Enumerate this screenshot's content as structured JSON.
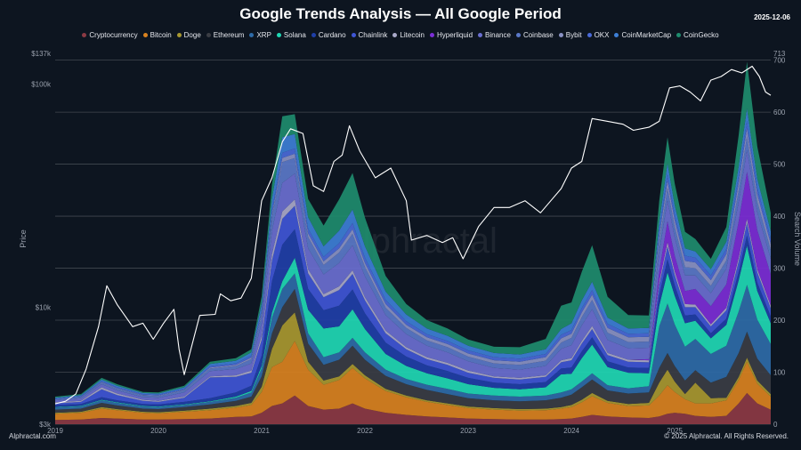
{
  "title": "Google Trends Analysis — All Google Period",
  "date": "2025-12-06",
  "brand": "Alphractal.com",
  "copyright": "© 2025 Alphractal. All Rights Reserved.",
  "watermark": "Alphractal",
  "chart_data": {
    "type": "area",
    "subtype": "stacked-area-with-price-line",
    "xlabel": "",
    "ylabel_left": "Price",
    "ylabel_right": "Search Volume",
    "y_left_scale": "log",
    "y_left_range": [
      3000,
      137000
    ],
    "y_left_ticks": [
      {
        "label": "$137k",
        "value": 137000
      },
      {
        "label": "$100k",
        "value": 100000
      },
      {
        "label": "$10k",
        "value": 10000
      },
      {
        "label": "$3k",
        "value": 3000
      }
    ],
    "y_right_range": [
      0,
      713
    ],
    "y_right_ticks": [
      0,
      100,
      200,
      300,
      400,
      500,
      600,
      700,
      713
    ],
    "x_range": [
      2019.0,
      2025.93
    ],
    "x_ticks": [
      "2019",
      "2020",
      "2021",
      "2022",
      "2023",
      "2024",
      "2025"
    ],
    "legend_position": "top-center",
    "grid": true,
    "x": [
      2019.0,
      2019.25,
      2019.45,
      2019.6,
      2019.85,
      2020.0,
      2020.25,
      2020.5,
      2020.75,
      2020.9,
      2021.0,
      2021.1,
      2021.2,
      2021.32,
      2021.45,
      2021.6,
      2021.75,
      2021.88,
      2022.0,
      2022.2,
      2022.4,
      2022.6,
      2022.8,
      2023.0,
      2023.25,
      2023.5,
      2023.75,
      2023.9,
      2024.0,
      2024.1,
      2024.2,
      2024.35,
      2024.55,
      2024.75,
      2024.85,
      2024.93,
      2025.0,
      2025.1,
      2025.2,
      2025.35,
      2025.5,
      2025.62,
      2025.7,
      2025.8,
      2025.93
    ],
    "series": [
      {
        "name": "Cryptocurrency",
        "color": "#8c3a44",
        "values": [
          8,
          9,
          12,
          11,
          9,
          9,
          10,
          11,
          14,
          15,
          22,
          35,
          40,
          55,
          35,
          28,
          30,
          40,
          30,
          22,
          18,
          15,
          13,
          11,
          10,
          9,
          9,
          10,
          11,
          14,
          18,
          15,
          13,
          12,
          15,
          20,
          22,
          20,
          16,
          14,
          16,
          40,
          60,
          40,
          28
        ]
      },
      {
        "name": "Bitcoin",
        "color": "#d9821f",
        "values": [
          12,
          13,
          18,
          16,
          13,
          12,
          14,
          16,
          18,
          22,
          40,
          75,
          80,
          105,
          70,
          48,
          55,
          68,
          58,
          42,
          34,
          28,
          24,
          20,
          18,
          17,
          18,
          20,
          22,
          28,
          36,
          26,
          22,
          24,
          40,
          55,
          40,
          28,
          24,
          26,
          30,
          45,
          60,
          38,
          25
        ]
      },
      {
        "name": "Doge",
        "color": "#a89830",
        "values": [
          2,
          2,
          3,
          2,
          2,
          2,
          2,
          3,
          3,
          4,
          10,
          35,
          70,
          55,
          15,
          8,
          7,
          8,
          6,
          4,
          3,
          3,
          3,
          3,
          3,
          3,
          3,
          3,
          4,
          5,
          6,
          4,
          4,
          5,
          25,
          30,
          20,
          10,
          40,
          10,
          5,
          6,
          8,
          6,
          5
        ]
      },
      {
        "name": "Ethereum",
        "color": "#3a3d44",
        "values": [
          6,
          6,
          8,
          7,
          6,
          6,
          7,
          8,
          10,
          12,
          20,
          30,
          35,
          45,
          35,
          30,
          32,
          35,
          30,
          25,
          22,
          20,
          18,
          16,
          15,
          15,
          16,
          18,
          20,
          24,
          26,
          20,
          20,
          20,
          28,
          32,
          30,
          26,
          24,
          30,
          40,
          46,
          50,
          42,
          36
        ]
      },
      {
        "name": "XRP",
        "color": "#2e6ba8",
        "values": [
          4,
          4,
          5,
          5,
          4,
          4,
          4,
          5,
          6,
          8,
          15,
          30,
          35,
          30,
          20,
          15,
          14,
          15,
          14,
          12,
          10,
          10,
          10,
          9,
          9,
          9,
          9,
          10,
          10,
          11,
          12,
          10,
          10,
          12,
          80,
          95,
          80,
          65,
          60,
          55,
          60,
          80,
          90,
          75,
          60
        ]
      },
      {
        "name": "Solana",
        "color": "#1fd8b4",
        "values": [
          1,
          1,
          1,
          1,
          1,
          1,
          1,
          1,
          2,
          3,
          5,
          10,
          15,
          30,
          45,
          55,
          50,
          55,
          45,
          30,
          25,
          22,
          20,
          18,
          15,
          14,
          16,
          35,
          30,
          45,
          55,
          35,
          30,
          25,
          40,
          60,
          55,
          45,
          35,
          30,
          40,
          60,
          75,
          55,
          40
        ]
      },
      {
        "name": "Cardano",
        "color": "#1f3fa8",
        "values": [
          4,
          4,
          5,
          4,
          4,
          4,
          5,
          6,
          8,
          10,
          20,
          60,
          70,
          55,
          40,
          35,
          40,
          38,
          30,
          22,
          18,
          15,
          14,
          12,
          10,
          10,
          10,
          11,
          12,
          13,
          14,
          11,
          10,
          10,
          20,
          25,
          20,
          15,
          12,
          10,
          12,
          16,
          20,
          16,
          13
        ]
      },
      {
        "name": "Chainlink",
        "color": "#3f56d6",
        "values": [
          3,
          4,
          15,
          10,
          6,
          5,
          8,
          40,
          30,
          25,
          30,
          40,
          50,
          45,
          30,
          25,
          30,
          30,
          25,
          18,
          14,
          12,
          12,
          10,
          9,
          9,
          10,
          12,
          14,
          15,
          16,
          12,
          11,
          11,
          20,
          25,
          20,
          16,
          14,
          13,
          16,
          20,
          24,
          20,
          16
        ]
      },
      {
        "name": "Litecoin",
        "color": "#a9a9c9",
        "values": [
          2,
          2,
          4,
          3,
          2,
          2,
          2,
          2,
          3,
          4,
          8,
          12,
          14,
          12,
          8,
          6,
          7,
          7,
          6,
          5,
          4,
          4,
          4,
          4,
          3,
          3,
          3,
          4,
          4,
          5,
          6,
          4,
          4,
          4,
          6,
          8,
          7,
          6,
          5,
          4,
          5,
          7,
          8,
          6,
          5
        ]
      },
      {
        "name": "Hyperliquid",
        "color": "#7c2ed6",
        "values": [
          0,
          0,
          0,
          0,
          0,
          0,
          0,
          0,
          0,
          0,
          0,
          0,
          0,
          0,
          0,
          0,
          0,
          0,
          0,
          0,
          0,
          0,
          0,
          0,
          0,
          0,
          0,
          0,
          0,
          0,
          0,
          0,
          0,
          2,
          20,
          40,
          30,
          25,
          30,
          35,
          45,
          70,
          90,
          75,
          60
        ]
      },
      {
        "name": "Binance",
        "color": "#6a6fd0",
        "values": [
          4,
          5,
          6,
          6,
          5,
          6,
          8,
          10,
          12,
          14,
          25,
          45,
          55,
          50,
          40,
          38,
          45,
          48,
          40,
          30,
          25,
          22,
          20,
          18,
          16,
          16,
          18,
          22,
          25,
          30,
          32,
          25,
          22,
          22,
          35,
          40,
          35,
          30,
          26,
          25,
          30,
          38,
          42,
          35,
          30
        ]
      },
      {
        "name": "Coinbase",
        "color": "#5a78c8",
        "values": [
          2,
          3,
          3,
          3,
          3,
          3,
          4,
          5,
          6,
          8,
          15,
          25,
          40,
          30,
          22,
          18,
          20,
          22,
          18,
          14,
          12,
          10,
          10,
          9,
          9,
          9,
          10,
          12,
          14,
          16,
          18,
          14,
          12,
          12,
          20,
          24,
          20,
          16,
          14,
          14,
          16,
          22,
          26,
          20,
          17
        ]
      },
      {
        "name": "Bybit",
        "color": "#8a92c4",
        "values": [
          0,
          0,
          1,
          1,
          1,
          1,
          1,
          2,
          2,
          3,
          4,
          6,
          8,
          8,
          7,
          7,
          8,
          9,
          8,
          7,
          6,
          6,
          6,
          6,
          6,
          6,
          7,
          8,
          8,
          9,
          10,
          9,
          9,
          9,
          12,
          14,
          13,
          12,
          11,
          11,
          12,
          14,
          16,
          14,
          12
        ]
      },
      {
        "name": "OKX",
        "color": "#4a6ad8",
        "values": [
          1,
          1,
          2,
          2,
          2,
          2,
          2,
          3,
          3,
          4,
          6,
          8,
          10,
          10,
          9,
          9,
          10,
          12,
          10,
          8,
          7,
          6,
          6,
          6,
          6,
          6,
          6,
          7,
          7,
          8,
          9,
          8,
          7,
          7,
          10,
          12,
          11,
          10,
          9,
          9,
          10,
          12,
          14,
          12,
          10
        ]
      },
      {
        "name": "CoinMarketCap",
        "color": "#3d7fd6",
        "values": [
          2,
          2,
          3,
          3,
          2,
          2,
          3,
          4,
          5,
          6,
          12,
          22,
          30,
          28,
          22,
          20,
          24,
          26,
          22,
          16,
          13,
          11,
          10,
          9,
          8,
          8,
          9,
          11,
          13,
          15,
          16,
          12,
          10,
          10,
          18,
          22,
          18,
          14,
          12,
          12,
          14,
          20,
          24,
          18,
          14
        ]
      },
      {
        "name": "CoinGecko",
        "color": "#1e8c6e",
        "values": [
          2,
          2,
          3,
          3,
          2,
          2,
          3,
          4,
          5,
          6,
          14,
          28,
          40,
          38,
          35,
          40,
          60,
          70,
          55,
          30,
          20,
          16,
          14,
          12,
          12,
          14,
          20,
          45,
          40,
          55,
          70,
          40,
          26,
          24,
          40,
          50,
          42,
          32,
          24,
          20,
          28,
          60,
          90,
          62,
          35
        ]
      }
    ],
    "price": {
      "name": "Price",
      "color": "#ffffff",
      "x": [
        2019.0,
        2019.1,
        2019.2,
        2019.3,
        2019.42,
        2019.5,
        2019.6,
        2019.75,
        2019.85,
        2019.95,
        2020.05,
        2020.15,
        2020.2,
        2020.25,
        2020.4,
        2020.55,
        2020.6,
        2020.7,
        2020.8,
        2020.9,
        2021.0,
        2021.1,
        2021.2,
        2021.28,
        2021.4,
        2021.5,
        2021.6,
        2021.7,
        2021.78,
        2021.85,
        2021.95,
        2022.1,
        2022.25,
        2022.4,
        2022.45,
        2022.6,
        2022.75,
        2022.85,
        2022.95,
        2023.1,
        2023.25,
        2023.4,
        2023.55,
        2023.7,
        2023.8,
        2023.9,
        2024.0,
        2024.1,
        2024.2,
        2024.35,
        2024.5,
        2024.6,
        2024.75,
        2024.85,
        2024.95,
        2025.05,
        2025.15,
        2025.25,
        2025.35,
        2025.45,
        2025.55,
        2025.65,
        2025.75,
        2025.82,
        2025.88,
        2025.93
      ],
      "values": [
        3700,
        3800,
        4100,
        5300,
        8200,
        12500,
        10300,
        8200,
        8500,
        7200,
        8500,
        9800,
        6500,
        5000,
        9200,
        9300,
        11500,
        10700,
        11000,
        13500,
        30000,
        38000,
        55000,
        63000,
        60000,
        35000,
        33000,
        45000,
        48000,
        65000,
        50000,
        38000,
        42000,
        30000,
        20000,
        21000,
        19500,
        20500,
        16500,
        23000,
        28000,
        28000,
        30000,
        26500,
        30000,
        34000,
        42000,
        45000,
        70000,
        68000,
        66000,
        62000,
        64000,
        68000,
        96000,
        98000,
        92000,
        84000,
        104000,
        108000,
        116000,
        112000,
        120000,
        108000,
        92000,
        89000
      ]
    }
  }
}
